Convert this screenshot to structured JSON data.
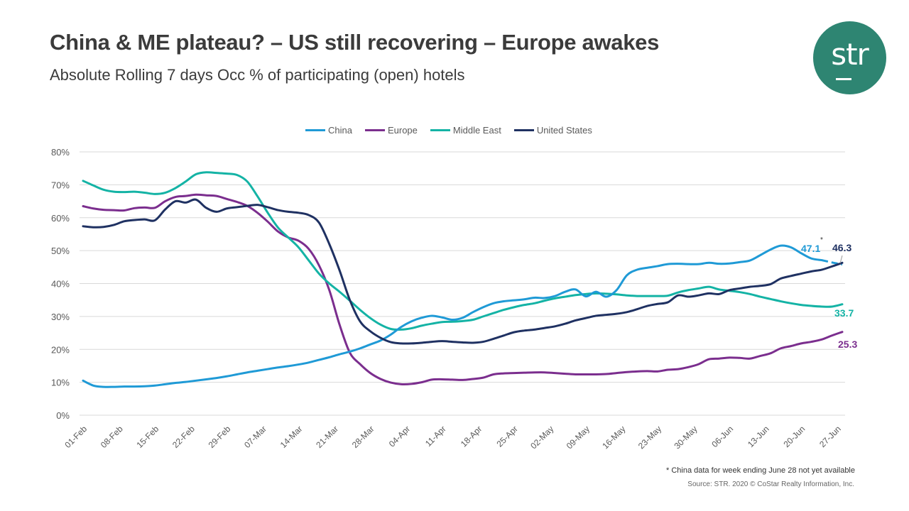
{
  "header": {
    "title": "China & ME plateau? – US still recovering – Europe awakes",
    "subtitle": "Absolute Rolling 7 days Occ % of participating (open) hotels"
  },
  "logo": {
    "text": "str",
    "color": "#2e8572"
  },
  "footer": {
    "footnote": "* China data for week ending June 28 not yet available",
    "source": "Source: STR. 2020 © CoStar Realty Information, Inc."
  },
  "chart_data": {
    "type": "line",
    "title": "China & ME plateau? – US still recovering – Europe awakes",
    "subtitle": "Absolute Rolling 7 days Occ % of participating (open) hotels",
    "xlabel": "",
    "ylabel": "",
    "ylim": [
      0,
      80
    ],
    "yticks": [
      "0%",
      "10%",
      "20%",
      "30%",
      "40%",
      "50%",
      "60%",
      "70%",
      "80%"
    ],
    "ytick_values": [
      0,
      10,
      20,
      30,
      40,
      50,
      60,
      70,
      80
    ],
    "grid": true,
    "legend_position": "top-center",
    "x_start": "01-Feb",
    "x_end_day": 148,
    "xticks": [
      "01-Feb",
      "08-Feb",
      "15-Feb",
      "22-Feb",
      "29-Feb",
      "07-Mar",
      "14-Mar",
      "21-Mar",
      "28-Mar",
      "04-Apr",
      "11-Apr",
      "18-Apr",
      "25-Apr",
      "02-May",
      "09-May",
      "16-May",
      "23-May",
      "30-May",
      "06-Jun",
      "13-Jun",
      "20-Jun",
      "27-Jun"
    ],
    "xtick_days": [
      0,
      7,
      14,
      21,
      28,
      35,
      42,
      49,
      56,
      63,
      70,
      77,
      84,
      91,
      98,
      105,
      112,
      119,
      126,
      133,
      140,
      147
    ],
    "x_days": [
      0,
      2,
      4,
      6,
      8,
      10,
      12,
      14,
      16,
      18,
      20,
      22,
      24,
      26,
      28,
      30,
      32,
      34,
      36,
      38,
      40,
      42,
      44,
      46,
      48,
      50,
      52,
      54,
      56,
      58,
      60,
      62,
      64,
      66,
      68,
      70,
      72,
      74,
      76,
      78,
      80,
      82,
      84,
      86,
      88,
      90,
      92,
      94,
      96,
      98,
      100,
      102,
      104,
      106,
      108,
      110,
      112,
      114,
      116,
      118,
      120,
      122,
      124,
      126,
      128,
      130,
      132,
      134,
      136,
      138,
      140,
      142,
      144,
      146,
      148
    ],
    "series": [
      {
        "name": "China",
        "color": "#1f9ad6",
        "values": [
          10.5,
          9.0,
          8.6,
          8.6,
          8.7,
          8.7,
          8.8,
          9.0,
          9.4,
          9.8,
          10.1,
          10.5,
          10.9,
          11.3,
          11.8,
          12.4,
          13.0,
          13.5,
          14.0,
          14.5,
          14.9,
          15.4,
          16.0,
          16.8,
          17.6,
          18.5,
          19.3,
          20.3,
          21.5,
          22.7,
          24.5,
          26.8,
          28.5,
          29.6,
          30.2,
          29.7,
          29.0,
          29.6,
          31.3,
          32.8,
          34.0,
          34.6,
          34.9,
          35.2,
          35.7,
          35.6,
          36.2,
          37.5,
          38.2,
          36.1,
          37.5,
          36.0,
          38.0,
          42.5,
          44.2,
          44.8,
          45.3,
          45.9,
          46.0,
          45.9,
          45.9,
          46.3,
          46.0,
          46.1,
          46.5,
          47.0,
          48.6,
          50.3,
          51.5,
          51.0,
          49.2,
          47.6,
          47.1,
          null,
          null
        ],
        "dashed_values": [
          null,
          null,
          null,
          null,
          null,
          null,
          null,
          null,
          null,
          null,
          null,
          null,
          null,
          null,
          null,
          null,
          null,
          null,
          null,
          null,
          null,
          null,
          null,
          null,
          null,
          null,
          null,
          null,
          null,
          null,
          null,
          null,
          null,
          null,
          null,
          null,
          null,
          null,
          null,
          null,
          null,
          null,
          null,
          null,
          null,
          null,
          null,
          null,
          null,
          null,
          null,
          null,
          null,
          null,
          null,
          null,
          null,
          null,
          null,
          null,
          null,
          null,
          null,
          null,
          null,
          null,
          null,
          null,
          null,
          null,
          null,
          null,
          47.1,
          46.4,
          45.8
        ],
        "end_label": "47.1*"
      },
      {
        "name": "Europe",
        "color": "#7b2e8e",
        "values": [
          63.5,
          62.8,
          62.4,
          62.3,
          62.2,
          62.9,
          63.1,
          63.0,
          65.0,
          66.3,
          66.6,
          67.0,
          66.8,
          66.6,
          65.7,
          64.8,
          63.6,
          61.5,
          58.8,
          55.8,
          54.0,
          53.0,
          50.5,
          45.5,
          38.0,
          27.5,
          19.0,
          15.5,
          12.8,
          11.0,
          9.9,
          9.4,
          9.5,
          10.0,
          10.8,
          10.9,
          10.8,
          10.7,
          11.0,
          11.4,
          12.4,
          12.7,
          12.8,
          12.9,
          13.0,
          13.0,
          12.8,
          12.6,
          12.4,
          12.4,
          12.4,
          12.5,
          12.8,
          13.1,
          13.3,
          13.4,
          13.3,
          13.8,
          14.0,
          14.6,
          15.5,
          17.0,
          17.2,
          17.5,
          17.4,
          17.2,
          18.0,
          18.8,
          20.3,
          21.0,
          21.8,
          22.3,
          23.0,
          24.2,
          25.3
        ],
        "end_label": "25.3"
      },
      {
        "name": "Middle East",
        "color": "#14b3a5",
        "values": [
          71.2,
          69.8,
          68.5,
          67.9,
          67.8,
          67.9,
          67.6,
          67.2,
          67.6,
          69.0,
          71.0,
          73.2,
          73.8,
          73.6,
          73.4,
          73.0,
          71.0,
          66.5,
          61.5,
          57.0,
          54.0,
          51.0,
          47.0,
          43.0,
          40.0,
          37.5,
          34.8,
          32.0,
          29.5,
          27.5,
          26.2,
          26.0,
          26.4,
          27.2,
          27.8,
          28.3,
          28.4,
          28.6,
          29.0,
          30.0,
          31.0,
          32.0,
          32.8,
          33.5,
          34.0,
          34.8,
          35.5,
          36.0,
          36.5,
          36.8,
          37.0,
          36.9,
          36.7,
          36.4,
          36.2,
          36.2,
          36.2,
          36.3,
          37.3,
          38.0,
          38.5,
          39.0,
          38.2,
          37.8,
          37.4,
          36.8,
          36.0,
          35.3,
          34.6,
          34.0,
          33.5,
          33.2,
          33.0,
          33.0,
          33.7
        ],
        "end_label": "33.7"
      },
      {
        "name": "United States",
        "color": "#1f3162",
        "values": [
          57.4,
          57.1,
          57.2,
          57.8,
          58.9,
          59.3,
          59.5,
          59.2,
          62.5,
          65.0,
          64.6,
          65.5,
          63.0,
          61.8,
          62.8,
          63.2,
          63.6,
          63.9,
          63.2,
          62.3,
          61.8,
          61.5,
          60.8,
          58.5,
          52.0,
          44.0,
          35.0,
          28.5,
          25.5,
          23.5,
          22.2,
          21.8,
          21.8,
          22.0,
          22.3,
          22.5,
          22.3,
          22.1,
          22.0,
          22.3,
          23.2,
          24.2,
          25.2,
          25.7,
          26.0,
          26.5,
          27.0,
          27.8,
          28.8,
          29.5,
          30.2,
          30.5,
          30.8,
          31.3,
          32.2,
          33.2,
          33.8,
          34.3,
          36.4,
          36.0,
          36.4,
          37.0,
          36.8,
          38.0,
          38.5,
          39.0,
          39.3,
          39.8,
          41.5,
          42.3,
          43.0,
          43.7,
          44.2,
          45.2,
          46.3
        ],
        "end_label": "46.3"
      }
    ]
  }
}
